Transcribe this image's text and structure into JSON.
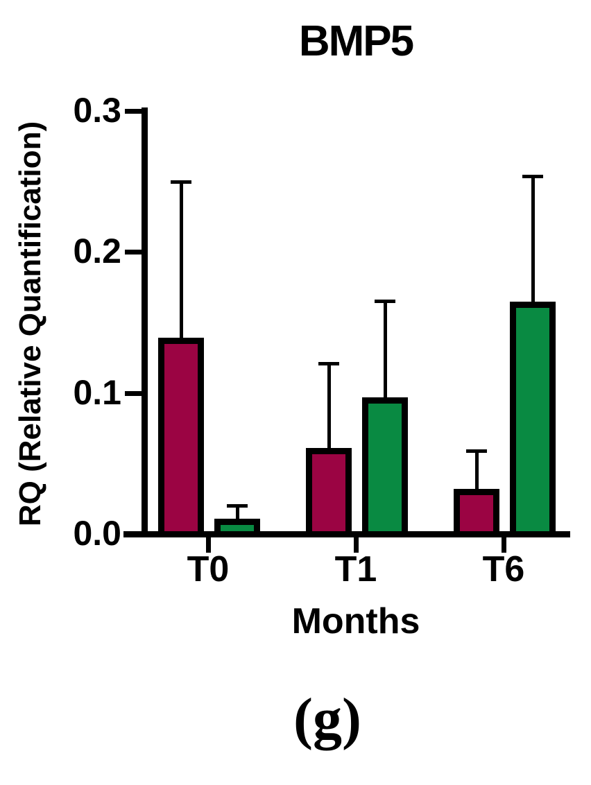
{
  "figure": {
    "caption": "(g)"
  },
  "chart_data": {
    "type": "bar",
    "title": "BMP5",
    "xlabel": "Months",
    "ylabel": "RQ (Relative Quantification)",
    "categories": [
      "T0",
      "T1",
      "T6"
    ],
    "series": [
      {
        "name": "maroon-series",
        "color": "#9B0443",
        "values": [
          0.139,
          0.061,
          0.032
        ],
        "error_plus": [
          0.112,
          0.061,
          0.028
        ]
      },
      {
        "name": "green-series",
        "color": "#098A42",
        "values": [
          0.011,
          0.097,
          0.165
        ],
        "error_plus": [
          0.01,
          0.069,
          0.09
        ]
      }
    ],
    "ylim": [
      0,
      0.3
    ],
    "yticks": [
      "0.0",
      "0.1",
      "0.2",
      "0.3"
    ],
    "grid": false,
    "legend_position": "none",
    "error_bars": "plus-only",
    "bar_outline_color": "#000000",
    "axis_color": "#000000"
  }
}
